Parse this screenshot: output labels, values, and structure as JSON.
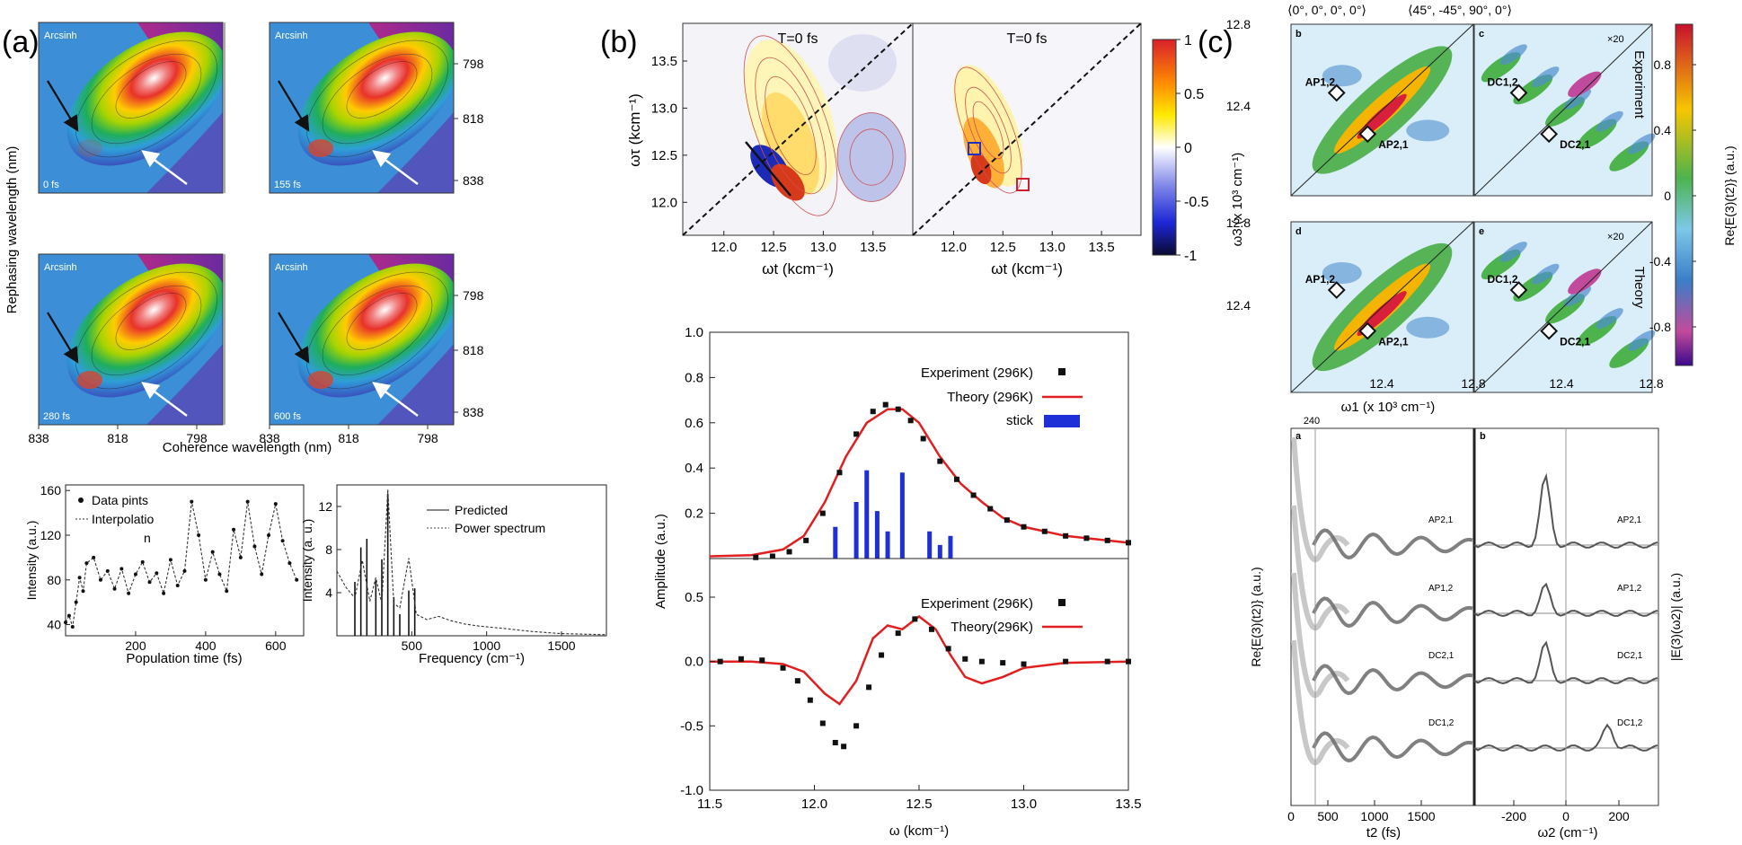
{
  "panel_labels": {
    "a": "(a)",
    "b": "(b)",
    "c": "(c)"
  },
  "colors": {
    "theory": "#e02020",
    "stick": "#1f2fd8",
    "exp": "#111111",
    "trace": "#6b6b6b"
  },
  "chart_data": [
    {
      "id": "a_2d_maps",
      "type": "heatmap",
      "overlay_text": "Arcsinh",
      "times": [
        "0 fs",
        "155 fs",
        "280 fs",
        "600 fs"
      ],
      "xlabel": "Coherence wavelength (nm)",
      "ylabel": "Rephasing wavelength (nm)",
      "xticks": [
        "838",
        "818",
        "798"
      ],
      "yticks": [
        "798",
        "818",
        "838"
      ]
    },
    {
      "id": "a_population",
      "type": "line",
      "legend": [
        "Data pints",
        "Interpolatio",
        "n"
      ],
      "xlabel": "Population time (fs)",
      "ylabel": "Intensity (a.u.)",
      "xlim": [
        0,
        680
      ],
      "ylim": [
        30,
        165
      ],
      "xticks": [
        "200",
        "400",
        "600"
      ],
      "yticks": [
        "40",
        "80",
        "120",
        "160"
      ],
      "x": [
        0,
        10,
        20,
        30,
        40,
        50,
        60,
        80,
        100,
        120,
        140,
        160,
        180,
        200,
        220,
        240,
        260,
        280,
        300,
        320,
        340,
        360,
        380,
        400,
        420,
        440,
        460,
        480,
        500,
        520,
        540,
        560,
        580,
        600,
        620,
        640,
        660
      ],
      "y": [
        42,
        48,
        38,
        60,
        82,
        70,
        95,
        100,
        80,
        88,
        72,
        90,
        68,
        85,
        96,
        78,
        86,
        68,
        98,
        75,
        88,
        150,
        120,
        80,
        105,
        85,
        70,
        125,
        100,
        150,
        110,
        85,
        120,
        148,
        115,
        95,
        80
      ]
    },
    {
      "id": "a_frequency",
      "type": "line",
      "legend": [
        "Predicted",
        "Power spectrum"
      ],
      "xlabel": "Frequency (cm⁻¹)",
      "ylabel": "Intensity (a. u.)",
      "xlim": [
        0,
        1800
      ],
      "ylim": [
        0,
        14
      ],
      "xticks": [
        "500",
        "1000",
        "1500"
      ],
      "yticks": [
        "4",
        "8",
        "12"
      ],
      "sticks": [
        [
          120,
          5.0
        ],
        [
          160,
          8.2
        ],
        [
          200,
          9.0
        ],
        [
          260,
          5.2
        ],
        [
          300,
          7.1
        ],
        [
          340,
          13.2
        ],
        [
          380,
          3.6
        ],
        [
          420,
          2.0
        ],
        [
          480,
          4.2
        ],
        [
          520,
          4.4
        ]
      ],
      "spectrum": [
        [
          0,
          6.0
        ],
        [
          60,
          4.5
        ],
        [
          120,
          3.5
        ],
        [
          170,
          7.0
        ],
        [
          220,
          3.2
        ],
        [
          260,
          5.4
        ],
        [
          300,
          3.0
        ],
        [
          340,
          13.6
        ],
        [
          380,
          3.0
        ],
        [
          420,
          2.6
        ],
        [
          480,
          7.2
        ],
        [
          530,
          2.0
        ],
        [
          600,
          1.5
        ],
        [
          680,
          1.8
        ],
        [
          760,
          1.4
        ],
        [
          850,
          1.1
        ],
        [
          950,
          0.9
        ],
        [
          1100,
          0.7
        ],
        [
          1300,
          0.4
        ],
        [
          1500,
          0.2
        ],
        [
          1800,
          0.1
        ]
      ]
    },
    {
      "id": "b_2d_maps",
      "type": "heatmap",
      "time_label": "T=0 fs",
      "xlabel": "ωt (kcm⁻¹)",
      "ylabel": "ωτ (kcm⁻¹)",
      "xticks": [
        "12.0",
        "12.5",
        "13.0",
        "13.5"
      ],
      "yticks": [
        "12.0",
        "12.5",
        "13.0",
        "13.5"
      ],
      "colorbar_ticks": [
        "1",
        "0.5",
        "0",
        "-0.5",
        "-1"
      ]
    },
    {
      "id": "b_absorption",
      "type": "line",
      "series": [
        {
          "name": "Experiment (296K)"
        },
        {
          "name": "Theory (296K)"
        },
        {
          "name": "stick"
        }
      ],
      "ylim": [
        0,
        1.0
      ],
      "yticks": [
        "0.2",
        "0.4",
        "0.6",
        "0.8",
        "1.0"
      ],
      "theory": [
        [
          11.5,
          0.01
        ],
        [
          11.7,
          0.015
        ],
        [
          11.85,
          0.04
        ],
        [
          11.95,
          0.1
        ],
        [
          12.05,
          0.25
        ],
        [
          12.15,
          0.45
        ],
        [
          12.25,
          0.6
        ],
        [
          12.35,
          0.66
        ],
        [
          12.42,
          0.66
        ],
        [
          12.5,
          0.6
        ],
        [
          12.6,
          0.45
        ],
        [
          12.7,
          0.33
        ],
        [
          12.8,
          0.25
        ],
        [
          12.9,
          0.18
        ],
        [
          13.0,
          0.14
        ],
        [
          13.2,
          0.1
        ],
        [
          13.5,
          0.07
        ]
      ],
      "experiment": [
        [
          11.72,
          0.005
        ],
        [
          11.8,
          0.01
        ],
        [
          11.88,
          0.03
        ],
        [
          11.96,
          0.08
        ],
        [
          12.04,
          0.2
        ],
        [
          12.12,
          0.38
        ],
        [
          12.2,
          0.55
        ],
        [
          12.28,
          0.65
        ],
        [
          12.34,
          0.68
        ],
        [
          12.4,
          0.66
        ],
        [
          12.46,
          0.61
        ],
        [
          12.52,
          0.53
        ],
        [
          12.6,
          0.43
        ],
        [
          12.68,
          0.35
        ],
        [
          12.76,
          0.28
        ],
        [
          12.84,
          0.22
        ],
        [
          12.92,
          0.17
        ],
        [
          13.0,
          0.14
        ],
        [
          13.1,
          0.12
        ],
        [
          13.2,
          0.1
        ],
        [
          13.3,
          0.09
        ],
        [
          13.4,
          0.08
        ],
        [
          13.5,
          0.07
        ]
      ],
      "sticks": [
        [
          12.1,
          0.14
        ],
        [
          12.2,
          0.25
        ],
        [
          12.25,
          0.39
        ],
        [
          12.3,
          0.21
        ],
        [
          12.35,
          0.12
        ],
        [
          12.42,
          0.38
        ],
        [
          12.55,
          0.12
        ],
        [
          12.6,
          0.06
        ],
        [
          12.65,
          0.1
        ]
      ]
    },
    {
      "id": "b_cd",
      "type": "line",
      "series": [
        {
          "name": "Experiment (296K)"
        },
        {
          "name": "Theory(296K)"
        }
      ],
      "xlabel": "ω (kcm⁻¹)",
      "ylabel": "Amplitude (a.u.)",
      "xlim": [
        11.5,
        13.5
      ],
      "ylim": [
        -1.0,
        0.8
      ],
      "xticks": [
        "11.5",
        "12.0",
        "12.5",
        "13.0",
        "13.5"
      ],
      "yticks": [
        "-1.0",
        "-0.5",
        "0.0",
        "0.5"
      ],
      "theory": [
        [
          11.5,
          0.0
        ],
        [
          11.7,
          0.0
        ],
        [
          11.85,
          -0.02
        ],
        [
          11.95,
          -0.08
        ],
        [
          12.05,
          -0.25
        ],
        [
          12.12,
          -0.33
        ],
        [
          12.2,
          -0.15
        ],
        [
          12.28,
          0.18
        ],
        [
          12.35,
          0.28
        ],
        [
          12.42,
          0.25
        ],
        [
          12.5,
          0.35
        ],
        [
          12.58,
          0.25
        ],
        [
          12.65,
          0.05
        ],
        [
          12.72,
          -0.12
        ],
        [
          12.8,
          -0.17
        ],
        [
          12.9,
          -0.12
        ],
        [
          13.0,
          -0.05
        ],
        [
          13.2,
          -0.01
        ],
        [
          13.5,
          0.0
        ]
      ],
      "experiment": [
        [
          11.55,
          0.0
        ],
        [
          11.65,
          0.02
        ],
        [
          11.75,
          0.01
        ],
        [
          11.85,
          -0.05
        ],
        [
          11.92,
          -0.15
        ],
        [
          11.98,
          -0.3
        ],
        [
          12.04,
          -0.48
        ],
        [
          12.1,
          -0.63
        ],
        [
          12.14,
          -0.66
        ],
        [
          12.2,
          -0.5
        ],
        [
          12.26,
          -0.2
        ],
        [
          12.32,
          0.05
        ],
        [
          12.4,
          0.22
        ],
        [
          12.48,
          0.33
        ],
        [
          12.56,
          0.25
        ],
        [
          12.64,
          0.1
        ],
        [
          12.72,
          0.02
        ],
        [
          12.8,
          0.0
        ],
        [
          12.9,
          -0.01
        ],
        [
          13.0,
          -0.02
        ],
        [
          13.2,
          0.0
        ],
        [
          13.4,
          0.0
        ],
        [
          13.5,
          0.0
        ]
      ]
    },
    {
      "id": "c_2d_maps",
      "type": "heatmap",
      "column_titles": [
        "⟨0°, 0°, 0°, 0°⟩",
        "⟨45°, -45°, 90°, 0°⟩"
      ],
      "subpanels": [
        "b",
        "c",
        "d",
        "e"
      ],
      "magnification": "×20",
      "row_labels": [
        "Experiment",
        "Theory"
      ],
      "labels_left": [
        "AP1,2",
        "AP2,1"
      ],
      "labels_right": [
        "DC1,2",
        "DC2,1"
      ],
      "xlabel": "ω1 (x 10³ cm⁻¹)",
      "ylabel": "ω3 (x 10³ cm⁻¹)",
      "ticks": [
        "12.4",
        "12.8"
      ],
      "colorbar_label": "Re{E(3)(t2)} (a.u.)",
      "colorbar_ticks": [
        "0.8",
        "0.4",
        "0",
        "-0.4",
        "-0.8"
      ]
    },
    {
      "id": "c_traces",
      "type": "line",
      "top_label": "240",
      "subpanels": [
        "a",
        "b"
      ],
      "traces": [
        "AP2,1",
        "AP1,2",
        "DC2,1",
        "DC1,2"
      ],
      "xlabel_left": "t2 (fs)",
      "xlabel_right": "ω2 (cm⁻¹)",
      "ylabel_left": "Re{E(3)(t2)} (a.u.)",
      "ylabel_right": "|E(3)(ω2)| (a.u.)",
      "xticks_left": [
        "0",
        "500",
        "1000",
        "1500"
      ],
      "xticks_right": [
        "-200",
        "0",
        "200"
      ]
    }
  ]
}
